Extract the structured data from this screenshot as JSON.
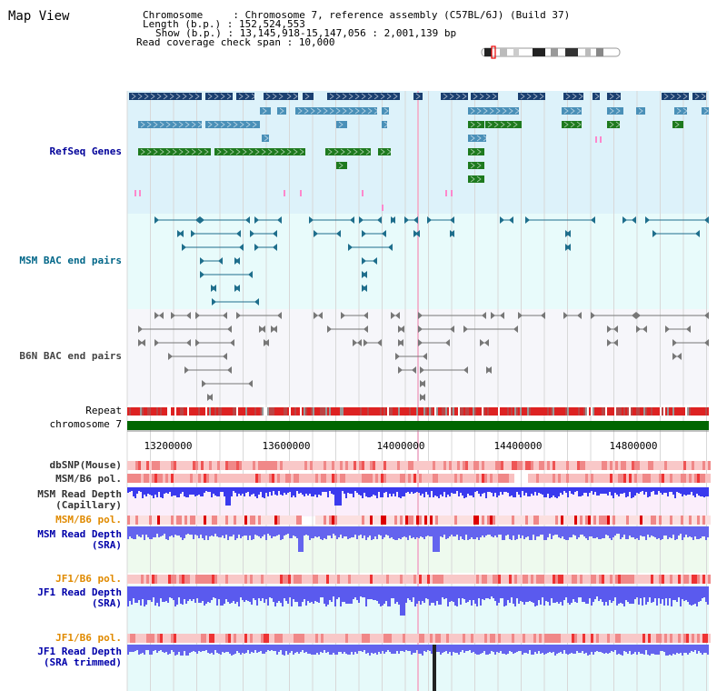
{
  "page": {
    "title": "Map View"
  },
  "info": {
    "chromosome_label": "Chromosome     : ",
    "chromosome_value": "Chromosome 7, reference assembly (C57BL/6J) (Build 37)",
    "length_label": "Length (b.p.) : ",
    "length_value": "152,524,553",
    "show_label": "Show (b.p.) : ",
    "show_value": "13,145,918-15,147,056 : 2,001,139 bp",
    "coverage_label": "Read coverage check span : ",
    "coverage_value": "10,000"
  },
  "tracks": {
    "refseq": "RefSeq Genes",
    "msm_bac": "MSM BAC end pairs",
    "b6n_bac": "B6N BAC end pairs",
    "repeat": "Repeat",
    "chromosome": "chromosome 7",
    "dbsnp": "dbSNP(Mouse)",
    "msm_b6_pol_1": "MSM/B6 pol.",
    "msm_read_depth_cap_1": "MSM Read Depth",
    "msm_read_depth_cap_2": "(Capillary)",
    "msm_b6_pol_2": "MSM/B6 pol.",
    "msm_read_depth_sra_1": "MSM Read Depth",
    "msm_read_depth_sra_2": "(SRA)",
    "jf1_b6_pol_1": "JF1/B6 pol.",
    "jf1_read_depth_sra_1": "JF1 Read Depth",
    "jf1_read_depth_sra_2": "(SRA)",
    "jf1_b6_pol_2": "JF1/B6 pol.",
    "jf1_read_depth_trim_1": "JF1 Read Depth",
    "jf1_read_depth_trim_2": "(SRA trimmed)"
  },
  "axis": {
    "ticks": [
      "13200000",
      "13600000",
      "14000000",
      "14400000",
      "14800000"
    ]
  },
  "colors": {
    "refseq_bg": "#ddf2fa",
    "bac_bg": "#e8fbfb",
    "b6n_bg": "#f5f5f9",
    "gene_dark": "#1a3f70",
    "gene_mid": "#4a90b8",
    "gene_green": "#1e7a1e",
    "chromosome": "#006600",
    "repeat": "#dd2222",
    "depth": "#5a5aee"
  }
}
